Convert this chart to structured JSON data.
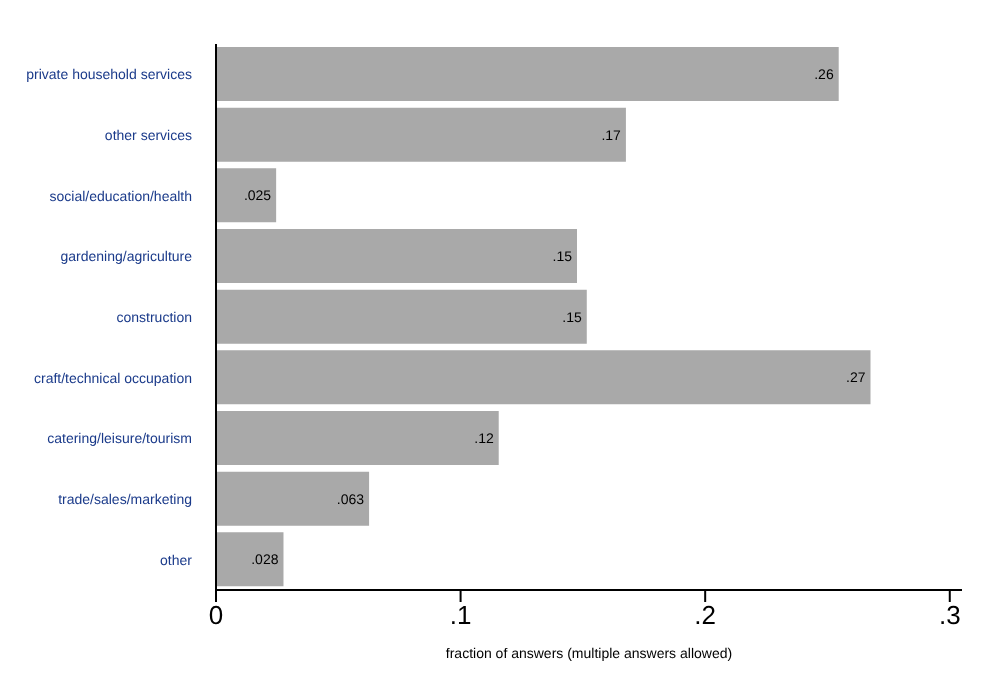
{
  "chart_data": {
    "type": "bar",
    "orientation": "horizontal",
    "xlabel": "fraction of answers (multiple answers allowed)",
    "categories": [
      "private household services",
      "other services",
      "social/education/health",
      "gardening/agriculture",
      "construction",
      "craft/technical occupation",
      "catering/leisure/tourism",
      "trade/sales/marketing",
      "other"
    ],
    "values": [
      0.255,
      0.168,
      0.025,
      0.148,
      0.152,
      0.268,
      0.116,
      0.063,
      0.028
    ],
    "value_labels": [
      ".26",
      ".17",
      ".025",
      ".15",
      ".15",
      ".27",
      ".12",
      ".063",
      ".028"
    ],
    "color": "#a9a9a9",
    "xlim": [
      0,
      0.305
    ],
    "xticks": [
      {
        "value": 0,
        "label": "0"
      },
      {
        "value": 0.1,
        "label": ".1"
      },
      {
        "value": 0.2,
        "label": ".2"
      },
      {
        "value": 0.3,
        "label": ".3"
      }
    ],
    "grid": false,
    "legend": false
  }
}
